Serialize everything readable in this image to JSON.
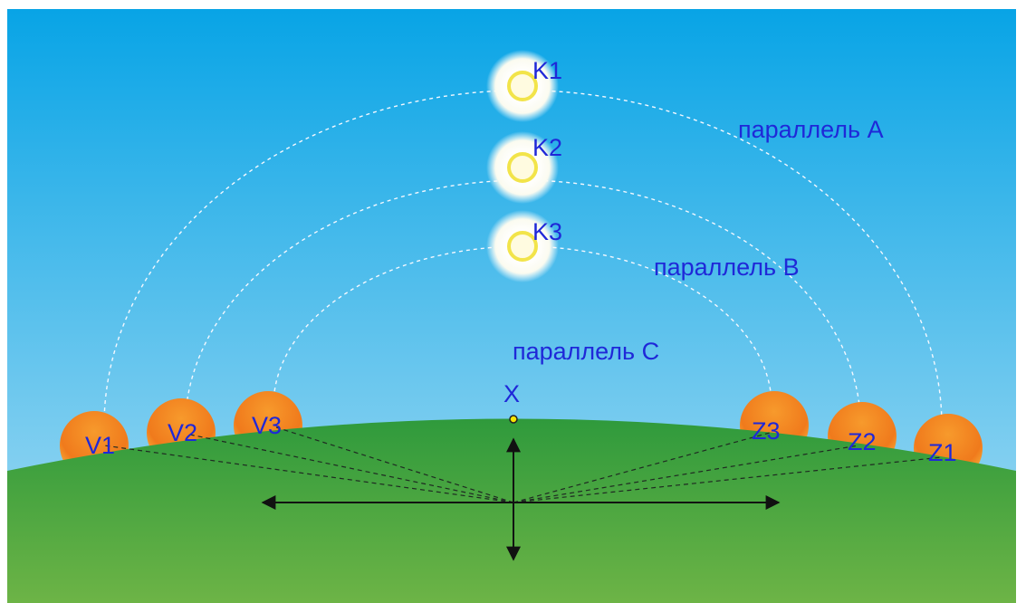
{
  "top_suns": [
    "K1",
    "K2",
    "K3"
  ],
  "parallels": [
    "параллель A",
    "параллель B",
    "параллель C"
  ],
  "zenith": "X",
  "rising": [
    "V1",
    "V2",
    "V3"
  ],
  "setting": [
    "Z1",
    "Z2",
    "Z3"
  ]
}
